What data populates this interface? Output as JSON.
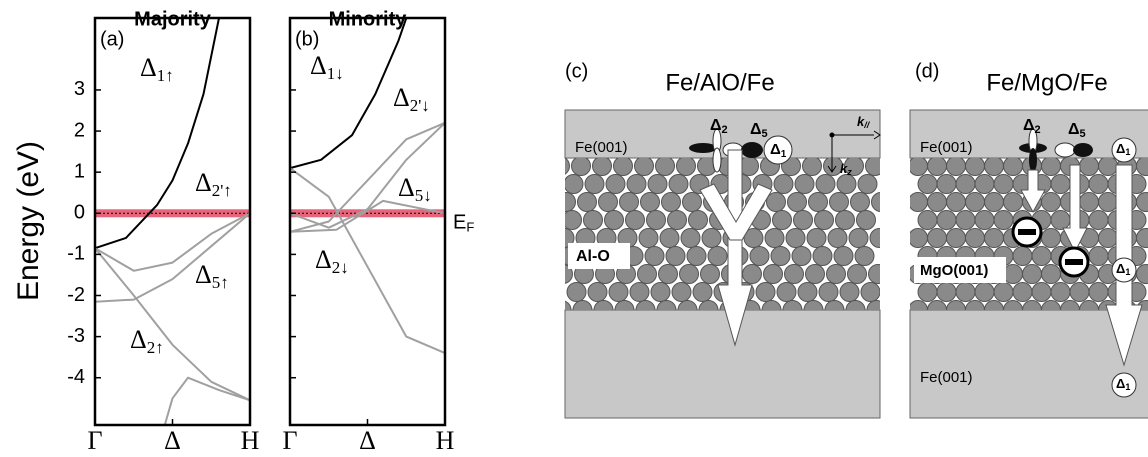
{
  "chart_data": [
    {
      "type": "line",
      "title": "Majority",
      "panel": "(a)",
      "ylabel": "Energy (eV)",
      "ylim": [
        -5.15,
        4.75
      ],
      "yticks": [
        -4,
        -3,
        -2,
        -1,
        0,
        1,
        2,
        3
      ],
      "xlim": [
        0,
        1
      ],
      "xticks": [
        {
          "value": 0,
          "label": "Γ"
        },
        {
          "value": 0.5,
          "label": "Δ"
        },
        {
          "value": 1,
          "label": "H"
        }
      ],
      "fermi_level": 0,
      "fermi_color": "#e8647a",
      "series": [
        {
          "color": "#000000",
          "x": [
            0,
            0.2,
            0.4,
            0.5,
            0.6,
            0.7,
            0.8
          ],
          "values": [
            -0.85,
            -0.6,
            0.2,
            0.8,
            1.7,
            2.9,
            4.75
          ]
        },
        {
          "color": "#a0a0a0",
          "x": [
            0,
            0.25,
            0.5,
            0.75,
            1
          ],
          "values": [
            -0.85,
            -2.0,
            -3.2,
            -4.1,
            -4.55
          ]
        },
        {
          "color": "#a0a0a0",
          "x": [
            0,
            0.25,
            0.5,
            0.75,
            1
          ],
          "values": [
            -2.15,
            -2.1,
            -1.6,
            -0.8,
            0
          ]
        },
        {
          "color": "#a0a0a0",
          "x": [
            0,
            0.25,
            0.5,
            0.75,
            1
          ],
          "values": [
            -0.85,
            -1.4,
            -1.2,
            -0.5,
            0
          ]
        },
        {
          "color": "#a0a0a0",
          "x": [
            0.45,
            0.5,
            0.6,
            0.8,
            1
          ],
          "values": [
            -5.15,
            -4.5,
            -4.0,
            -4.3,
            -4.55
          ]
        }
      ],
      "annotations": [
        {
          "text": "Δ",
          "sub": "1↑"
        },
        {
          "text": "Δ",
          "sub": "2'↑"
        },
        {
          "text": "Δ",
          "sub": "5↑"
        },
        {
          "text": "Δ",
          "sub": "2↑"
        }
      ]
    },
    {
      "type": "line",
      "title": "Minority",
      "panel": "(b)",
      "ylim": [
        -5.15,
        4.75
      ],
      "yticks": [
        -4,
        -3,
        -2,
        -1,
        0,
        1,
        2,
        3
      ],
      "xlim": [
        0,
        1
      ],
      "xticks": [
        {
          "value": 0,
          "label": "Γ"
        },
        {
          "value": 0.5,
          "label": "Δ"
        },
        {
          "value": 1,
          "label": "H"
        }
      ],
      "fermi_level": 0,
      "fermi_color": "#e8647a",
      "fermi_label": "E",
      "fermi_sub": "F",
      "series": [
        {
          "color": "#000000",
          "x": [
            0,
            0.2,
            0.4,
            0.55,
            0.7,
            0.75
          ],
          "values": [
            1.1,
            1.3,
            1.9,
            2.9,
            4.2,
            4.75
          ]
        },
        {
          "color": "#a0a0a0",
          "x": [
            0,
            0.25,
            0.5,
            0.75,
            1
          ],
          "values": [
            1.1,
            0.4,
            -1.3,
            -3.0,
            -3.4
          ]
        },
        {
          "color": "#a0a0a0",
          "x": [
            0,
            0.25,
            0.5,
            0.75,
            1
          ],
          "values": [
            -0.45,
            -0.2,
            0.8,
            1.8,
            2.2
          ]
        },
        {
          "color": "#a0a0a0",
          "x": [
            0,
            0.25,
            0.5,
            0.75,
            1
          ],
          "values": [
            0,
            -0.35,
            0.1,
            1.3,
            2.2
          ]
        },
        {
          "color": "#a0a0a0",
          "x": [
            0,
            0.3,
            0.6,
            1
          ],
          "values": [
            -0.45,
            -0.4,
            0.3,
            0
          ]
        }
      ],
      "annotations": [
        {
          "text": "Δ",
          "sub": "1↓"
        },
        {
          "text": "Δ",
          "sub": "2'↓"
        },
        {
          "text": "Δ",
          "sub": "5↓"
        },
        {
          "text": "Δ",
          "sub": "2↓"
        }
      ]
    }
  ],
  "diagrams": {
    "c": {
      "panel": "(c)",
      "title": "Fe/AlO/Fe",
      "top": "Fe(001)",
      "barrier": "Al-O",
      "d2": "Δ",
      "d2sub": "2",
      "d5": "Δ",
      "d5sub": "5",
      "d1": "Δ",
      "d1sub": "1"
    },
    "axes": {
      "kpar": "k",
      "kparsub": "//",
      "kz": "k",
      "kzsub": "z"
    },
    "d": {
      "panel": "(d)",
      "title": "Fe/MgO/Fe",
      "top": "Fe(001)",
      "barrier": "MgO(001)",
      "bottom": "Fe(001)",
      "d2": "Δ",
      "d2sub": "2",
      "d5": "Δ",
      "d5sub": "5",
      "d1": "Δ",
      "d1sub": "1",
      "d1b": "Δ",
      "d1bsub": "1",
      "d1c": "Δ",
      "d1csub": "1"
    }
  }
}
